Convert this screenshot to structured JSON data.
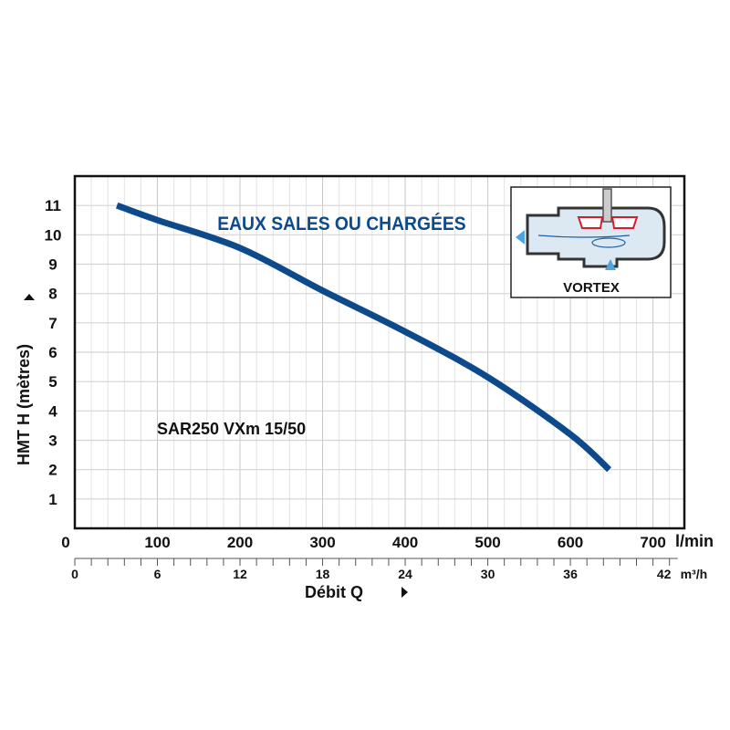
{
  "chart_data": {
    "type": "line",
    "title": "EAUX SALES OU CHARGÉES",
    "model_label": "SAR250 VXm 15/50",
    "xlabel": "Débit Q",
    "ylabel": "HMT H (mètres)",
    "x_unit": "l/min",
    "x2_unit": "m³/h",
    "xlim": [
      0,
      738
    ],
    "ylim": [
      0,
      12
    ],
    "x_ticks": [
      0,
      100,
      200,
      300,
      400,
      500,
      600,
      700
    ],
    "x2_ticks": [
      0,
      6,
      12,
      18,
      24,
      30,
      36,
      42
    ],
    "y_ticks": [
      1,
      2,
      3,
      4,
      5,
      6,
      7,
      8,
      9,
      10,
      11
    ],
    "grid": true,
    "inset_label": "VORTEX",
    "series": [
      {
        "name": "SAR250 VXm 15/50",
        "color": "#0d4a8c",
        "x": [
          51,
          100,
          200,
          300,
          400,
          500,
          600,
          647
        ],
        "y": [
          11.0,
          10.5,
          9.55,
          8.1,
          6.7,
          5.15,
          3.2,
          2.0
        ]
      }
    ]
  }
}
